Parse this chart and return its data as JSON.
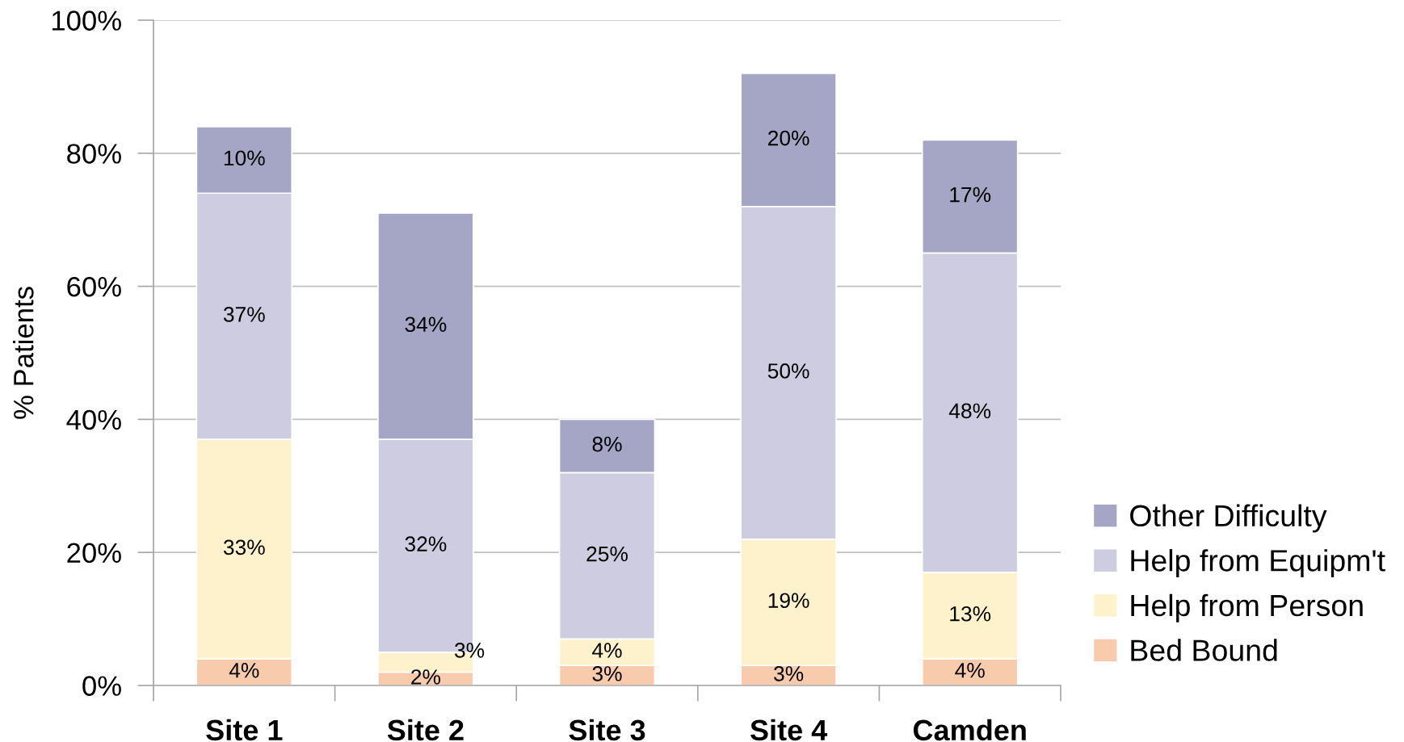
{
  "chart_data": {
    "type": "bar",
    "stacked": true,
    "ylabel": "% Patients",
    "categories": [
      "Site 1",
      "Site 2",
      "Site 3",
      "Site 4",
      "Camden"
    ],
    "series": [
      {
        "name": "Bed Bound",
        "color": "#f8cbad",
        "values": [
          4,
          2,
          3,
          3,
          4
        ],
        "value_labels": [
          "4%",
          "2%",
          "3%",
          "3%",
          "4%"
        ]
      },
      {
        "name": "Help from Person",
        "color": "#fef2cc",
        "values": [
          33,
          3,
          4,
          19,
          13
        ],
        "value_labels": [
          "33%",
          "3%",
          "4%",
          "19%",
          "13%"
        ]
      },
      {
        "name": "Help from Equipm't",
        "color": "#cdcce0",
        "values": [
          37,
          32,
          25,
          50,
          48
        ],
        "value_labels": [
          "37%",
          "32%",
          "25%",
          "50%",
          "48%"
        ]
      },
      {
        "name": "Other Difficulty",
        "color": "#a5a5c5",
        "values": [
          10,
          34,
          8,
          20,
          17
        ],
        "value_labels": [
          "10%",
          "34%",
          "8%",
          "20%",
          "17%"
        ]
      }
    ],
    "ylim": [
      0,
      100
    ],
    "yticks": [
      {
        "value": 0,
        "label": "0%"
      },
      {
        "value": 20,
        "label": "20%"
      },
      {
        "value": 40,
        "label": "40%"
      },
      {
        "value": 60,
        "label": "60%"
      },
      {
        "value": 80,
        "label": "80%"
      },
      {
        "value": 100,
        "label": "100%"
      }
    ],
    "grid": "y",
    "legend": "right"
  }
}
